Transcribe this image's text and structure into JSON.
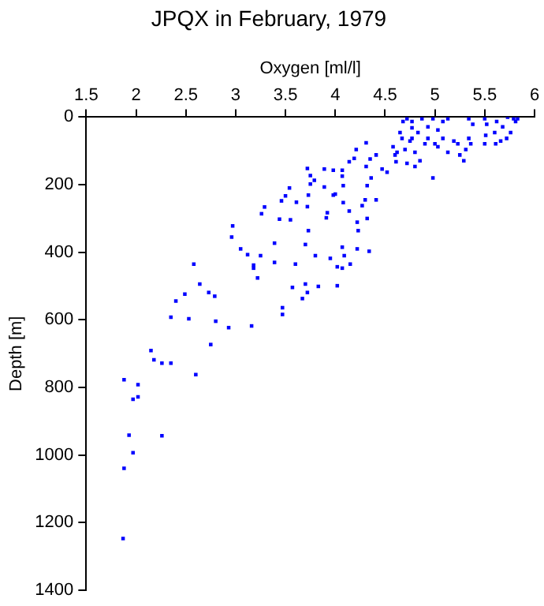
{
  "chart_data": {
    "type": "scatter",
    "title": "JPQX in February, 1979",
    "xlabel": "Oxygen [ml/l]",
    "ylabel": "Depth [m]",
    "xlim": [
      1.5,
      6
    ],
    "xticks": [
      1.5,
      2,
      2.5,
      3,
      3.5,
      4,
      4.5,
      5,
      5.5,
      6
    ],
    "ylim": [
      1400,
      0
    ],
    "yticks": [
      0,
      200,
      400,
      600,
      800,
      1000,
      1200,
      1400
    ],
    "grid": false,
    "legend": false,
    "marker": "square",
    "series": [
      {
        "color": "#0000ff",
        "x": [
          1.88,
          2.02,
          1.97,
          2.02,
          1.93,
          1.97,
          1.88,
          2.26,
          2.15,
          2.18,
          2.26,
          2.35,
          2.6,
          2.35,
          2.53,
          2.4,
          2.49,
          2.64,
          2.73,
          2.79,
          2.8,
          2.75,
          2.93,
          3.16,
          3.47,
          3.47,
          3.57,
          3.67,
          3.7,
          3.72,
          3.83,
          4.02,
          4.07,
          3.22,
          3.18,
          1.87,
          2.58,
          2.97,
          2.96,
          3.05,
          3.12,
          3.25,
          3.18,
          3.39,
          3.39,
          3.26,
          3.29,
          3.44,
          3.55,
          3.46,
          3.5,
          3.54,
          3.61,
          3.72,
          3.73,
          3.75,
          3.79,
          3.72,
          3.75,
          3.6,
          3.7,
          3.73,
          3.8,
          3.89,
          3.89,
          3.98,
          3.98,
          3.92,
          3.91,
          4.07,
          4.08,
          4.08,
          4.07,
          4.0,
          4.14,
          4.21,
          4.19,
          4.14,
          4.22,
          4.23,
          4.27,
          4.3,
          4.32,
          4.31,
          4.35,
          4.41,
          4.31,
          4.36,
          4.32,
          4.34,
          4.22,
          4.07,
          4.09,
          3.95,
          4.02,
          4.15,
          4.41,
          4.47,
          4.52,
          4.58,
          4.61,
          4.62,
          4.67,
          4.68,
          4.72,
          4.77,
          4.87,
          4.98,
          5.08,
          5.13,
          4.7,
          4.75,
          4.8,
          4.85,
          4.8,
          4.72,
          4.83,
          4.93,
          5.0,
          5.08,
          5.19,
          4.98,
          5.25,
          5.29,
          5.23,
          5.34,
          5.38,
          5.34,
          5.36,
          5.5,
          5.52,
          5.51,
          5.5,
          5.6,
          5.62,
          5.66,
          5.68,
          5.73,
          5.79,
          5.81,
          5.76,
          5.72,
          5.61,
          5.31,
          5.13,
          5.03,
          4.9,
          4.65,
          4.77,
          4.93,
          5.03,
          4.77,
          4.6,
          5.83
        ],
        "values": [
          777,
          792,
          835,
          828,
          941,
          993,
          1039,
          943,
          691,
          718,
          728,
          728,
          762,
          592,
          597,
          544,
          524,
          494,
          519,
          530,
          604,
          673,
          623,
          618,
          564,
          584,
          504,
          537,
          494,
          519,
          501,
          499,
          447,
          476,
          447,
          1247,
          435,
          322,
          355,
          390,
          407,
          410,
          438,
          373,
          430,
          286,
          266,
          302,
          304,
          248,
          233,
          210,
          252,
          265,
          231,
          198,
          187,
          152,
          173,
          435,
          377,
          336,
          410,
          207,
          154,
          157,
          231,
          283,
          298,
          175,
          203,
          253,
          157,
          228,
          132,
          96,
          122,
          278,
          311,
          336,
          262,
          245,
          203,
          146,
          124,
          112,
          76,
          180,
          300,
          397,
          390,
          385,
          410,
          418,
          443,
          435,
          245,
          154,
          163,
          88,
          132,
          104,
          63,
          13,
          5,
          13,
          5,
          5,
          13,
          5,
          96,
          71,
          104,
          129,
          146,
          137,
          46,
          63,
          79,
          63,
          71,
          180,
          112,
          129,
          79,
          5,
          21,
          63,
          79,
          5,
          21,
          54,
          79,
          46,
          13,
          71,
          29,
          0,
          5,
          13,
          46,
          63,
          79,
          96,
          104,
          88,
          79,
          46,
          63,
          29,
          38,
          32,
          112,
          5
        ]
      }
    ]
  }
}
